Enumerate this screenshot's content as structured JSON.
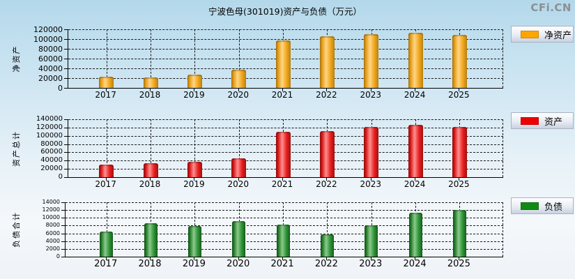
{
  "page": {
    "title": "宁波色母(301019)资产与负债（万元）",
    "watermark": "CFi.CN"
  },
  "chart_data": [
    {
      "type": "bar",
      "id": "net-assets",
      "ylabel": "净资产",
      "legend": "净资产",
      "legend_position": "right",
      "grid": true,
      "categories": [
        "2017",
        "2018",
        "2019",
        "2020",
        "2021",
        "2022",
        "2023",
        "2024",
        "2025"
      ],
      "values": [
        23500,
        22000,
        27000,
        37000,
        97000,
        105500,
        110000,
        113500,
        108500
      ],
      "ylim": [
        0,
        120000
      ],
      "ytick_step": 20000,
      "legend_color": "#FFA500",
      "bar_gradient": [
        "#A8720E",
        "#E29A16",
        "#FFD584",
        "#F2A71E",
        "#B9830F"
      ]
    },
    {
      "type": "bar",
      "id": "total-assets",
      "ylabel": "资产总计",
      "legend": "资产",
      "legend_position": "right",
      "grid": true,
      "categories": [
        "2017",
        "2018",
        "2019",
        "2020",
        "2021",
        "2022",
        "2023",
        "2024",
        "2025"
      ],
      "values": [
        31000,
        33000,
        36400,
        46000,
        109000,
        112000,
        121000,
        127000,
        122000
      ],
      "ylim": [
        0,
        140000
      ],
      "ytick_step": 20000,
      "legend_color": "#EE0000",
      "bar_gradient": [
        "#8F0C0C",
        "#D31414",
        "#FF8F8F",
        "#E82020",
        "#A30F0F"
      ]
    },
    {
      "type": "bar",
      "id": "total-liabilities",
      "ylabel": "负债合计",
      "legend": "负债",
      "legend_position": "right",
      "grid": true,
      "categories": [
        "2017",
        "2018",
        "2019",
        "2020",
        "2021",
        "2022",
        "2023",
        "2024",
        "2025"
      ],
      "values": [
        6400,
        8700,
        7900,
        9100,
        8200,
        5800,
        8050,
        11300,
        12000
      ],
      "ylim": [
        0,
        14000
      ],
      "ytick_step": 2000,
      "legend_color": "#0F8A16",
      "bar_gradient": [
        "#14511A",
        "#237B28",
        "#8CCA8C",
        "#2F9538",
        "#175D1D"
      ]
    }
  ]
}
